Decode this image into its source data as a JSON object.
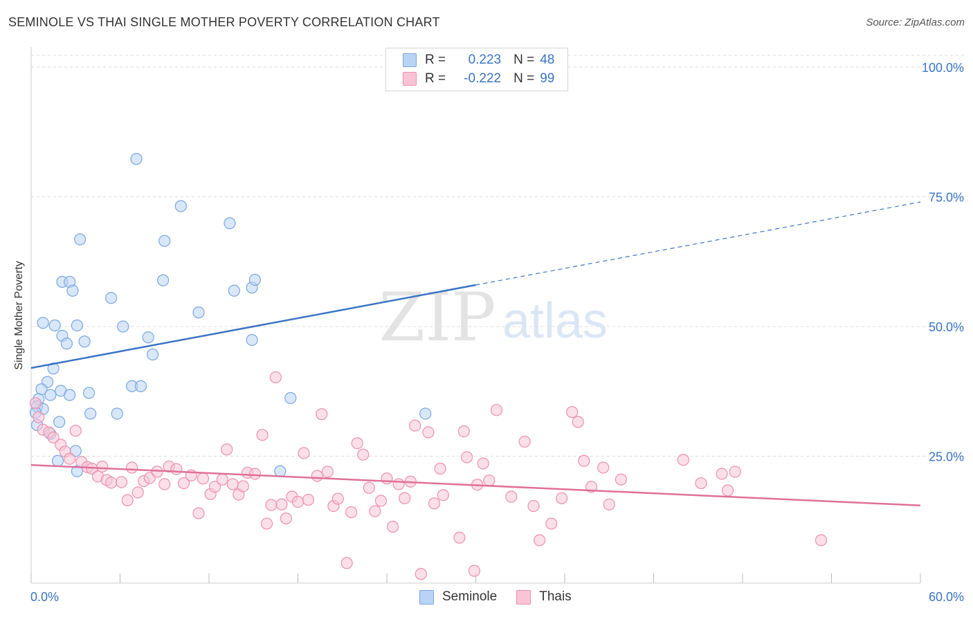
{
  "header": {
    "title": "SEMINOLE VS THAI SINGLE MOTHER POVERTY CORRELATION CHART",
    "source": "Source: ZipAtlas.com"
  },
  "watermark": {
    "zip": "ZIP",
    "atlas": "atlas"
  },
  "legend": {
    "seminole": {
      "r_label": "R =",
      "r_value": "0.223",
      "n_label": "N =",
      "n_value": "48"
    },
    "thais": {
      "r_label": "R =",
      "r_value": "-0.222",
      "n_label": "N =",
      "n_value": "99"
    }
  },
  "colors": {
    "seminole_fill": "#b9d3f5",
    "seminole_stroke": "#7aa8e0",
    "seminole_line": "#3a74c6",
    "thais_fill": "#f9c4d6",
    "thais_stroke": "#ec91b1",
    "thais_line": "#e07099",
    "axis_text": "#3a74c6",
    "grid": "#dddddd"
  },
  "chart_data": {
    "type": "scatter",
    "title": "SEMINOLE VS THAI SINGLE MOTHER POVERTY CORRELATION CHART",
    "xlabel": "",
    "ylabel": "Single Mother Poverty",
    "xlim": [
      0,
      60
    ],
    "ylim": [
      0,
      100
    ],
    "x_tick_labels": [
      "0.0%",
      "60.0%"
    ],
    "y_ticks": [
      25,
      50,
      75,
      100
    ],
    "y_tick_labels": [
      "25.0%",
      "50.0%",
      "75.0%",
      "100.0%"
    ],
    "grid": "horizontal dashed",
    "legend_position": "bottom",
    "series": [
      {
        "name": "Seminole",
        "r": 0.223,
        "n": 48,
        "trend": {
          "x0": 0,
          "y0": 42.0,
          "x1": 30,
          "y1": 58.0,
          "dashed_to_x": 60,
          "dashed_to_y": 74.0
        },
        "points": [
          [
            7.1,
            82.3
          ],
          [
            10.1,
            73.2
          ],
          [
            3.3,
            66.8
          ],
          [
            9.0,
            66.5
          ],
          [
            13.4,
            69.9
          ],
          [
            2.1,
            58.6
          ],
          [
            2.6,
            58.6
          ],
          [
            8.9,
            58.9
          ],
          [
            13.7,
            56.9
          ],
          [
            14.9,
            57.5
          ],
          [
            15.1,
            59.0
          ],
          [
            2.8,
            56.9
          ],
          [
            5.4,
            55.5
          ],
          [
            11.3,
            52.7
          ],
          [
            0.8,
            50.7
          ],
          [
            1.6,
            50.2
          ],
          [
            3.1,
            50.2
          ],
          [
            6.2,
            50.0
          ],
          [
            2.1,
            48.2
          ],
          [
            2.4,
            46.7
          ],
          [
            3.6,
            47.1
          ],
          [
            7.9,
            47.9
          ],
          [
            14.9,
            47.4
          ],
          [
            8.2,
            44.6
          ],
          [
            1.5,
            41.9
          ],
          [
            1.1,
            39.3
          ],
          [
            0.7,
            37.9
          ],
          [
            2.0,
            37.6
          ],
          [
            3.9,
            37.2
          ],
          [
            6.8,
            38.5
          ],
          [
            7.4,
            38.5
          ],
          [
            17.5,
            36.2
          ],
          [
            1.3,
            36.8
          ],
          [
            2.6,
            36.8
          ],
          [
            0.5,
            36.0
          ],
          [
            0.4,
            34.6
          ],
          [
            0.8,
            34.1
          ],
          [
            0.3,
            33.4
          ],
          [
            4.0,
            33.2
          ],
          [
            5.8,
            33.2
          ],
          [
            26.6,
            33.2
          ],
          [
            0.4,
            31.0
          ],
          [
            1.9,
            31.6
          ],
          [
            1.3,
            29.3
          ],
          [
            3.0,
            26.0
          ],
          [
            1.8,
            24.1
          ],
          [
            3.1,
            22.1
          ],
          [
            16.8,
            22.1
          ]
        ]
      },
      {
        "name": "Thais",
        "r": -0.222,
        "n": 99,
        "trend": {
          "x0": 0,
          "y0": 23.3,
          "x1": 60,
          "y1": 15.5
        },
        "points": [
          [
            0.3,
            35.2
          ],
          [
            0.5,
            32.5
          ],
          [
            0.8,
            30.1
          ],
          [
            1.2,
            29.6
          ],
          [
            1.5,
            28.6
          ],
          [
            2.0,
            27.2
          ],
          [
            3.0,
            29.9
          ],
          [
            2.3,
            25.9
          ],
          [
            2.6,
            24.5
          ],
          [
            3.4,
            23.9
          ],
          [
            3.8,
            22.9
          ],
          [
            4.1,
            22.6
          ],
          [
            4.5,
            21.1
          ],
          [
            4.8,
            23.0
          ],
          [
            5.1,
            20.4
          ],
          [
            5.4,
            19.9
          ],
          [
            6.1,
            20.0
          ],
          [
            6.5,
            16.5
          ],
          [
            6.8,
            22.8
          ],
          [
            7.2,
            18.0
          ],
          [
            7.6,
            20.2
          ],
          [
            8.0,
            20.8
          ],
          [
            8.5,
            22.0
          ],
          [
            9.0,
            19.6
          ],
          [
            9.3,
            23.0
          ],
          [
            9.8,
            22.5
          ],
          [
            10.3,
            19.8
          ],
          [
            10.8,
            21.3
          ],
          [
            11.3,
            14.0
          ],
          [
            11.6,
            20.7
          ],
          [
            12.1,
            17.7
          ],
          [
            12.4,
            19.1
          ],
          [
            12.9,
            20.5
          ],
          [
            13.2,
            26.3
          ],
          [
            13.6,
            19.6
          ],
          [
            14.0,
            17.6
          ],
          [
            14.3,
            19.2
          ],
          [
            14.6,
            21.8
          ],
          [
            15.1,
            21.6
          ],
          [
            15.6,
            29.1
          ],
          [
            15.9,
            12.0
          ],
          [
            16.2,
            15.6
          ],
          [
            16.5,
            40.2
          ],
          [
            16.9,
            15.7
          ],
          [
            17.2,
            13.0
          ],
          [
            17.6,
            17.2
          ],
          [
            18.0,
            16.2
          ],
          [
            18.4,
            25.6
          ],
          [
            18.7,
            16.6
          ],
          [
            19.3,
            21.2
          ],
          [
            19.6,
            33.1
          ],
          [
            20.0,
            22.0
          ],
          [
            20.4,
            15.4
          ],
          [
            20.7,
            16.8
          ],
          [
            21.3,
            4.4
          ],
          [
            21.6,
            14.2
          ],
          [
            22.0,
            27.5
          ],
          [
            22.4,
            25.3
          ],
          [
            22.8,
            18.9
          ],
          [
            23.2,
            14.4
          ],
          [
            23.6,
            16.4
          ],
          [
            24.0,
            20.7
          ],
          [
            24.4,
            11.4
          ],
          [
            24.8,
            19.6
          ],
          [
            25.2,
            16.9
          ],
          [
            25.6,
            20.1
          ],
          [
            25.9,
            30.9
          ],
          [
            26.3,
            2.3
          ],
          [
            26.8,
            29.6
          ],
          [
            27.2,
            15.9
          ],
          [
            27.6,
            22.6
          ],
          [
            27.8,
            17.5
          ],
          [
            28.9,
            9.3
          ],
          [
            29.2,
            29.8
          ],
          [
            29.4,
            24.8
          ],
          [
            29.9,
            2.9
          ],
          [
            30.1,
            19.5
          ],
          [
            30.5,
            23.6
          ],
          [
            30.9,
            20.3
          ],
          [
            31.4,
            33.9
          ],
          [
            32.4,
            17.2
          ],
          [
            33.3,
            27.8
          ],
          [
            33.9,
            15.4
          ],
          [
            34.3,
            8.8
          ],
          [
            35.1,
            12.0
          ],
          [
            35.8,
            16.9
          ],
          [
            36.5,
            33.5
          ],
          [
            36.9,
            31.6
          ],
          [
            37.3,
            24.1
          ],
          [
            37.8,
            19.1
          ],
          [
            39.0,
            15.7
          ],
          [
            39.8,
            20.5
          ],
          [
            45.2,
            19.8
          ],
          [
            46.6,
            21.6
          ],
          [
            47.0,
            18.4
          ],
          [
            47.5,
            22.0
          ],
          [
            53.3,
            8.8
          ],
          [
            44.0,
            24.3
          ],
          [
            38.6,
            22.8
          ]
        ]
      }
    ]
  }
}
